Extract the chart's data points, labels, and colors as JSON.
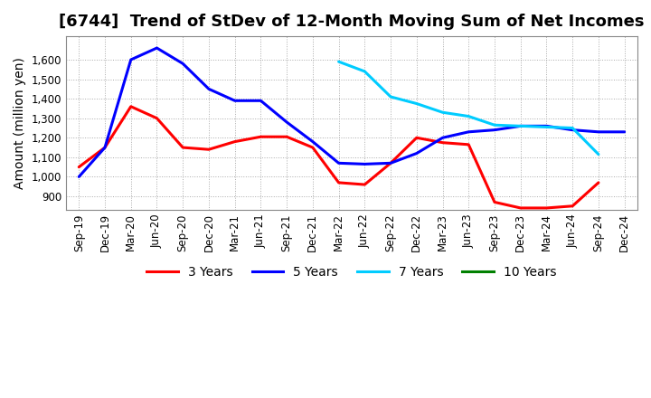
{
  "title": "[6744]  Trend of StDev of 12-Month Moving Sum of Net Incomes",
  "ylabel": "Amount (million yen)",
  "background_color": "#ffffff",
  "grid_color": "#aaaaaa",
  "title_fontsize": 13,
  "label_fontsize": 10,
  "tick_fontsize": 8.5,
  "ylim": [
    830,
    1720
  ],
  "yticks": [
    900,
    1000,
    1100,
    1200,
    1300,
    1400,
    1500,
    1600
  ],
  "xtick_labels": [
    "Sep-19",
    "Dec-19",
    "Mar-20",
    "Jun-20",
    "Sep-20",
    "Dec-20",
    "Mar-21",
    "Jun-21",
    "Sep-21",
    "Dec-21",
    "Mar-22",
    "Jun-22",
    "Sep-22",
    "Dec-22",
    "Mar-23",
    "Jun-23",
    "Sep-23",
    "Dec-23",
    "Mar-24",
    "Jun-24",
    "Sep-24",
    "Dec-24"
  ],
  "series": {
    "3 Years": {
      "color": "#ff0000",
      "dates": [
        "Sep-19",
        "Dec-19",
        "Mar-20",
        "Jun-20",
        "Sep-20",
        "Dec-20",
        "Mar-21",
        "Jun-21",
        "Sep-21",
        "Dec-21",
        "Mar-22",
        "Jun-22",
        "Sep-22",
        "Dec-22",
        "Mar-23",
        "Jun-23",
        "Sep-23",
        "Dec-23",
        "Mar-24",
        "Jun-24",
        "Sep-24"
      ],
      "values": [
        1050,
        1150,
        1360,
        1300,
        1150,
        1140,
        1180,
        1205,
        1205,
        1150,
        970,
        960,
        1070,
        1200,
        1175,
        1165,
        870,
        840,
        840,
        850,
        970
      ]
    },
    "5 Years": {
      "color": "#0000ff",
      "dates": [
        "Sep-19",
        "Dec-19",
        "Mar-20",
        "Jun-20",
        "Sep-20",
        "Dec-20",
        "Mar-21",
        "Jun-21",
        "Sep-21",
        "Dec-21",
        "Mar-22",
        "Jun-22",
        "Sep-22",
        "Dec-22",
        "Mar-23",
        "Jun-23",
        "Sep-23",
        "Dec-23",
        "Mar-24",
        "Jun-24",
        "Sep-24",
        "Dec-24"
      ],
      "values": [
        1000,
        1150,
        1600,
        1660,
        1580,
        1450,
        1390,
        1390,
        1280,
        1180,
        1070,
        1065,
        1070,
        1120,
        1200,
        1230,
        1240,
        1260,
        1260,
        1240,
        1230,
        1230
      ]
    },
    "7 Years": {
      "color": "#00ccff",
      "dates": [
        "Mar-22",
        "Jun-22",
        "Sep-22",
        "Dec-22",
        "Mar-23",
        "Jun-23",
        "Sep-23",
        "Dec-23",
        "Mar-24",
        "Jun-24",
        "Sep-24"
      ],
      "values": [
        1590,
        1540,
        1410,
        1375,
        1330,
        1310,
        1265,
        1260,
        1255,
        1250,
        1115
      ]
    },
    "10 Years": {
      "color": "#008000",
      "dates": [],
      "values": []
    }
  },
  "legend_entries": [
    "3 Years",
    "5 Years",
    "7 Years",
    "10 Years"
  ],
  "legend_colors": [
    "#ff0000",
    "#0000ff",
    "#00ccff",
    "#008000"
  ]
}
